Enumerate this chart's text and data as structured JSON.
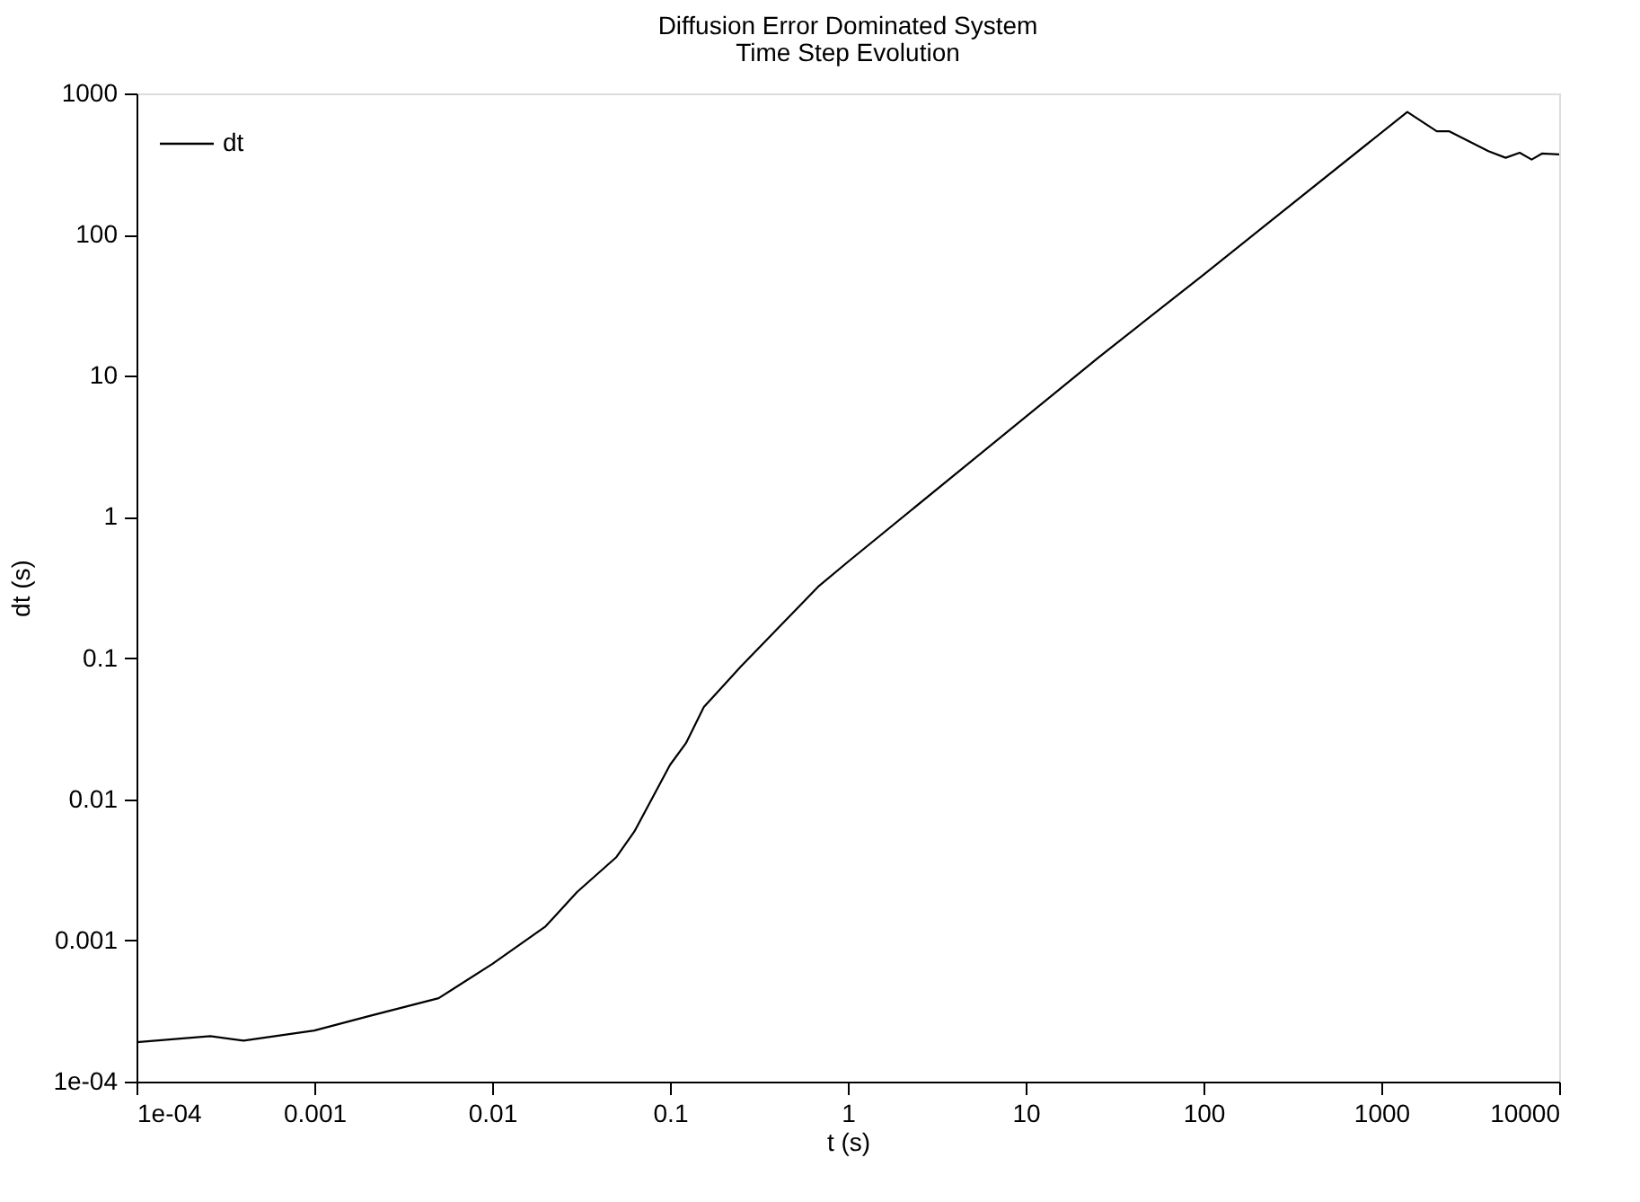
{
  "chart_data": {
    "type": "line",
    "title": "Diffusion Error Dominated System",
    "subtitle": "Time Step Evolution",
    "xlabel": "t (s)",
    "ylabel": "dt (s)",
    "log": "xy",
    "grid": false,
    "legend": "top left",
    "marker": "none",
    "line_style": "solid",
    "xlim": [
      0.0001,
      10000
    ],
    "ylim": [
      0.0001,
      1000
    ],
    "xticks": [
      {
        "value": 0.0001,
        "label": "1e-04"
      },
      0.001,
      0.01,
      0.1,
      1,
      10,
      100,
      1000,
      10000
    ],
    "yticks": [
      {
        "value": 0.0001,
        "label": "1e-04"
      },
      0.001,
      0.01,
      0.1,
      1,
      10,
      100,
      1000
    ],
    "series": [
      {
        "name": "dt",
        "color": "#000000",
        "x": [
          0.0001,
          0.00026,
          0.0004,
          0.001,
          0.002,
          0.005,
          0.01,
          0.02,
          0.03,
          0.05,
          0.063,
          0.1,
          0.123,
          0.155,
          0.25,
          0.68,
          1,
          25.7,
          100,
          1400,
          2050,
          2400,
          4000,
          5000,
          6000,
          7000,
          8000,
          10000
        ],
        "values": [
          0.00019,
          0.00021,
          0.000195,
          0.00023,
          0.00029,
          0.00039,
          0.00068,
          0.00126,
          0.0022,
          0.0039,
          0.0059,
          0.0175,
          0.025,
          0.045,
          0.087,
          0.32,
          0.48,
          13.5,
          52,
          740,
          540,
          540,
          390,
          350,
          380,
          340,
          375,
          370
        ]
      }
    ]
  }
}
